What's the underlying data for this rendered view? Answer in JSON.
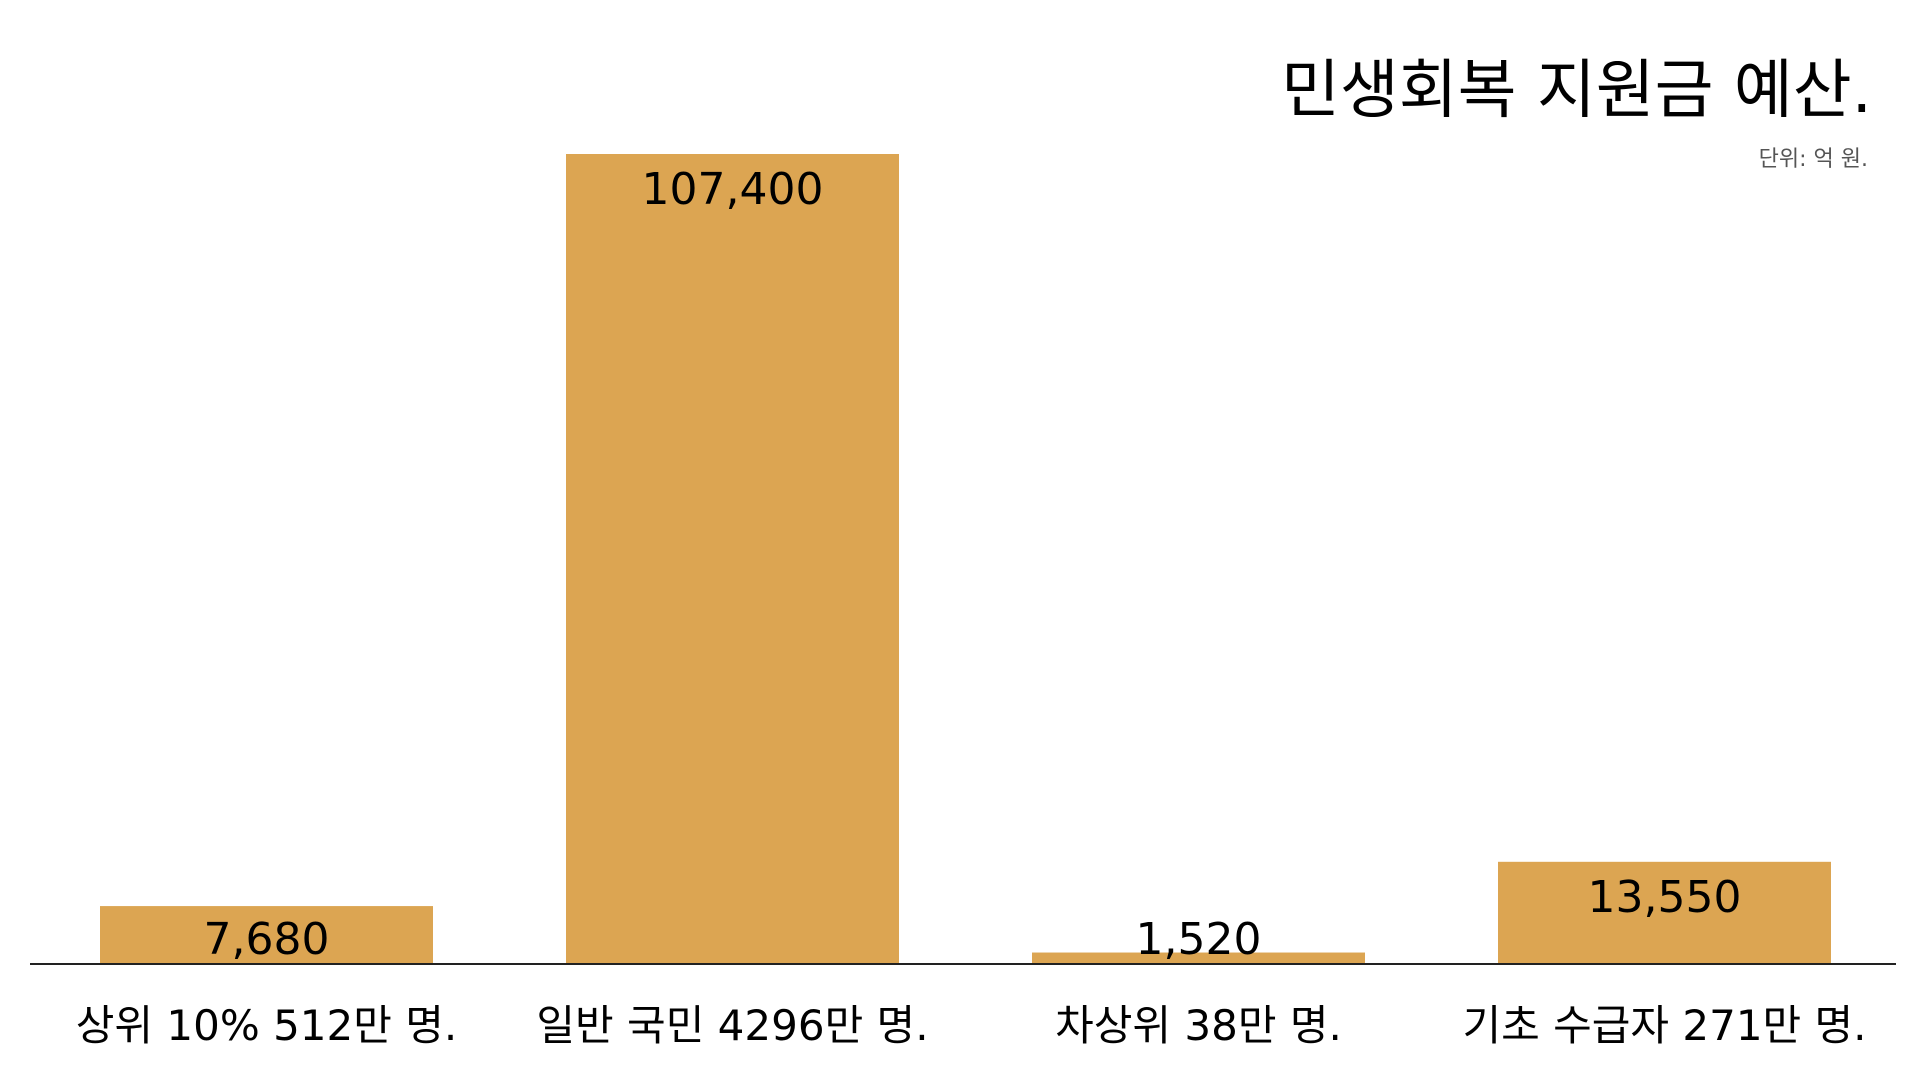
{
  "chart_data": {
    "type": "bar",
    "title": "민생회복 지원금 예산.",
    "subtitle": "단위: 억 원.",
    "categories": [
      "상위 10% 512만 명.",
      "일반 국민 4296만 명.",
      "차상위 38만 명.",
      "기초 수급자 271만 명."
    ],
    "values": [
      7680,
      107400,
      1520,
      13550
    ],
    "value_labels": [
      "7,680",
      "107,400",
      "1,520",
      "13,550"
    ],
    "ylim": [
      0,
      107400
    ],
    "grid": false,
    "legend": "none",
    "bar_color": "#dca552",
    "axis_color": "#222222"
  }
}
